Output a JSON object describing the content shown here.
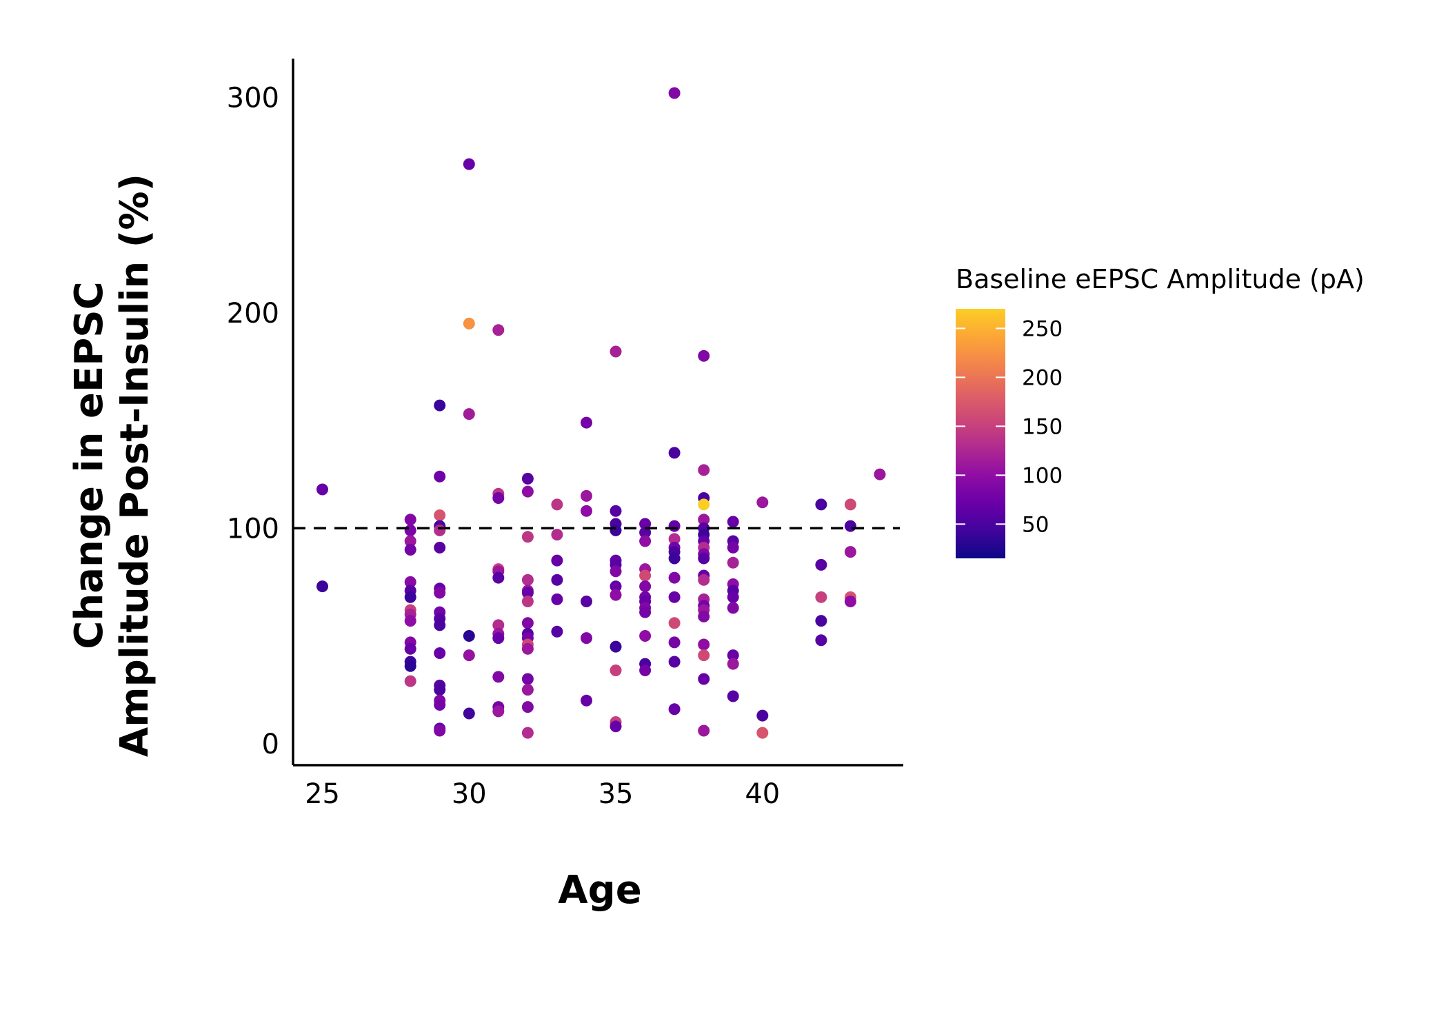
{
  "chart_data": {
    "type": "scatter",
    "title": "",
    "xlabel": "Age",
    "ylabel_lines": [
      "Change in eEPSC",
      "Amplitude Post-Insulin (%)"
    ],
    "xlim": [
      24,
      44.8
    ],
    "ylim": [
      -10,
      318
    ],
    "x_ticks": [
      25,
      30,
      35,
      40
    ],
    "y_ticks": [
      0,
      100,
      200,
      300
    ],
    "reference_line": {
      "y": 100,
      "style": "dashed"
    },
    "grid": false,
    "legend": {
      "title": "Baseline eEPSC Amplitude (pA)",
      "placement": "right",
      "type": "colorbar",
      "range": [
        15,
        270
      ],
      "ticks": [
        50,
        100,
        150,
        200,
        250
      ]
    },
    "colormap": [
      "#0d0887",
      "#41049d",
      "#6a00a8",
      "#8f0da4",
      "#b12a90",
      "#cc4778",
      "#e16462",
      "#f2844b",
      "#fca636",
      "#fcce25"
    ],
    "points": [
      {
        "x": 25,
        "y": 118,
        "c": 70
      },
      {
        "x": 25,
        "y": 73,
        "c": 40
      },
      {
        "x": 28,
        "y": 104,
        "c": 90
      },
      {
        "x": 28,
        "y": 99,
        "c": 85
      },
      {
        "x": 28,
        "y": 94,
        "c": 110
      },
      {
        "x": 28,
        "y": 90,
        "c": 80
      },
      {
        "x": 28,
        "y": 75,
        "c": 95
      },
      {
        "x": 28,
        "y": 71,
        "c": 60
      },
      {
        "x": 28,
        "y": 68,
        "c": 40
      },
      {
        "x": 28,
        "y": 62,
        "c": 150
      },
      {
        "x": 28,
        "y": 60,
        "c": 120
      },
      {
        "x": 28,
        "y": 57,
        "c": 100
      },
      {
        "x": 28,
        "y": 47,
        "c": 90
      },
      {
        "x": 28,
        "y": 44,
        "c": 70
      },
      {
        "x": 28,
        "y": 38,
        "c": 40
      },
      {
        "x": 28,
        "y": 36,
        "c": 30
      },
      {
        "x": 28,
        "y": 29,
        "c": 140
      },
      {
        "x": 29,
        "y": 157,
        "c": 40
      },
      {
        "x": 29,
        "y": 124,
        "c": 75
      },
      {
        "x": 29,
        "y": 106,
        "c": 170
      },
      {
        "x": 29,
        "y": 101,
        "c": 50
      },
      {
        "x": 29,
        "y": 99,
        "c": 130
      },
      {
        "x": 29,
        "y": 91,
        "c": 60
      },
      {
        "x": 29,
        "y": 72,
        "c": 70
      },
      {
        "x": 29,
        "y": 70,
        "c": 90
      },
      {
        "x": 29,
        "y": 61,
        "c": 80
      },
      {
        "x": 29,
        "y": 58,
        "c": 60
      },
      {
        "x": 29,
        "y": 55,
        "c": 50
      },
      {
        "x": 29,
        "y": 42,
        "c": 70
      },
      {
        "x": 29,
        "y": 27,
        "c": 60
      },
      {
        "x": 29,
        "y": 25,
        "c": 50
      },
      {
        "x": 29,
        "y": 20,
        "c": 90
      },
      {
        "x": 29,
        "y": 18,
        "c": 80
      },
      {
        "x": 29,
        "y": 7,
        "c": 70
      },
      {
        "x": 29,
        "y": 6,
        "c": 90
      },
      {
        "x": 30,
        "y": 269,
        "c": 70
      },
      {
        "x": 30,
        "y": 195,
        "c": 225
      },
      {
        "x": 30,
        "y": 153,
        "c": 115
      },
      {
        "x": 30,
        "y": 50,
        "c": 30
      },
      {
        "x": 30,
        "y": 41,
        "c": 105
      },
      {
        "x": 30,
        "y": 14,
        "c": 45
      },
      {
        "x": 31,
        "y": 192,
        "c": 120
      },
      {
        "x": 31,
        "y": 116,
        "c": 140
      },
      {
        "x": 31,
        "y": 114,
        "c": 80
      },
      {
        "x": 31,
        "y": 81,
        "c": 150
      },
      {
        "x": 31,
        "y": 80,
        "c": 110
      },
      {
        "x": 31,
        "y": 77,
        "c": 60
      },
      {
        "x": 31,
        "y": 55,
        "c": 130
      },
      {
        "x": 31,
        "y": 51,
        "c": 110
      },
      {
        "x": 31,
        "y": 49,
        "c": 70
      },
      {
        "x": 31,
        "y": 31,
        "c": 90
      },
      {
        "x": 31,
        "y": 17,
        "c": 80
      },
      {
        "x": 31,
        "y": 15,
        "c": 110
      },
      {
        "x": 32,
        "y": 123,
        "c": 60
      },
      {
        "x": 32,
        "y": 117,
        "c": 100
      },
      {
        "x": 32,
        "y": 96,
        "c": 140
      },
      {
        "x": 32,
        "y": 76,
        "c": 130
      },
      {
        "x": 32,
        "y": 71,
        "c": 110
      },
      {
        "x": 32,
        "y": 70,
        "c": 70
      },
      {
        "x": 32,
        "y": 66,
        "c": 140
      },
      {
        "x": 32,
        "y": 56,
        "c": 90
      },
      {
        "x": 32,
        "y": 51,
        "c": 60
      },
      {
        "x": 32,
        "y": 49,
        "c": 80
      },
      {
        "x": 32,
        "y": 46,
        "c": 160
      },
      {
        "x": 32,
        "y": 44,
        "c": 110
      },
      {
        "x": 32,
        "y": 30,
        "c": 80
      },
      {
        "x": 32,
        "y": 25,
        "c": 110
      },
      {
        "x": 32,
        "y": 17,
        "c": 90
      },
      {
        "x": 32,
        "y": 5,
        "c": 130
      },
      {
        "x": 33,
        "y": 111,
        "c": 140
      },
      {
        "x": 33,
        "y": 97,
        "c": 130
      },
      {
        "x": 33,
        "y": 85,
        "c": 70
      },
      {
        "x": 33,
        "y": 76,
        "c": 60
      },
      {
        "x": 33,
        "y": 67,
        "c": 70
      },
      {
        "x": 33,
        "y": 52,
        "c": 60
      },
      {
        "x": 34,
        "y": 149,
        "c": 80
      },
      {
        "x": 34,
        "y": 115,
        "c": 110
      },
      {
        "x": 34,
        "y": 108,
        "c": 100
      },
      {
        "x": 34,
        "y": 66,
        "c": 60
      },
      {
        "x": 34,
        "y": 49,
        "c": 90
      },
      {
        "x": 34,
        "y": 20,
        "c": 70
      },
      {
        "x": 35,
        "y": 182,
        "c": 120
      },
      {
        "x": 35,
        "y": 108,
        "c": 60
      },
      {
        "x": 35,
        "y": 102,
        "c": 50
      },
      {
        "x": 35,
        "y": 99,
        "c": 40
      },
      {
        "x": 35,
        "y": 85,
        "c": 70
      },
      {
        "x": 35,
        "y": 83,
        "c": 60
      },
      {
        "x": 35,
        "y": 80,
        "c": 90
      },
      {
        "x": 35,
        "y": 73,
        "c": 70
      },
      {
        "x": 35,
        "y": 69,
        "c": 100
      },
      {
        "x": 35,
        "y": 45,
        "c": 40
      },
      {
        "x": 35,
        "y": 34,
        "c": 150
      },
      {
        "x": 35,
        "y": 10,
        "c": 150
      },
      {
        "x": 35,
        "y": 8,
        "c": 70
      },
      {
        "x": 36,
        "y": 102,
        "c": 70
      },
      {
        "x": 36,
        "y": 98,
        "c": 60
      },
      {
        "x": 36,
        "y": 94,
        "c": 100
      },
      {
        "x": 36,
        "y": 81,
        "c": 110
      },
      {
        "x": 36,
        "y": 78,
        "c": 160
      },
      {
        "x": 36,
        "y": 73,
        "c": 90
      },
      {
        "x": 36,
        "y": 68,
        "c": 80
      },
      {
        "x": 36,
        "y": 66,
        "c": 70
      },
      {
        "x": 36,
        "y": 63,
        "c": 90
      },
      {
        "x": 36,
        "y": 61,
        "c": 80
      },
      {
        "x": 36,
        "y": 50,
        "c": 100
      },
      {
        "x": 36,
        "y": 37,
        "c": 50
      },
      {
        "x": 36,
        "y": 34,
        "c": 80
      },
      {
        "x": 37,
        "y": 302,
        "c": 90
      },
      {
        "x": 37,
        "y": 135,
        "c": 50
      },
      {
        "x": 37,
        "y": 101,
        "c": 70
      },
      {
        "x": 37,
        "y": 95,
        "c": 130
      },
      {
        "x": 37,
        "y": 91,
        "c": 80
      },
      {
        "x": 37,
        "y": 89,
        "c": 50
      },
      {
        "x": 37,
        "y": 86,
        "c": 40
      },
      {
        "x": 37,
        "y": 77,
        "c": 90
      },
      {
        "x": 37,
        "y": 68,
        "c": 70
      },
      {
        "x": 37,
        "y": 56,
        "c": 160
      },
      {
        "x": 37,
        "y": 47,
        "c": 80
      },
      {
        "x": 37,
        "y": 38,
        "c": 60
      },
      {
        "x": 37,
        "y": 16,
        "c": 70
      },
      {
        "x": 38,
        "y": 180,
        "c": 90
      },
      {
        "x": 38,
        "y": 127,
        "c": 120
      },
      {
        "x": 38,
        "y": 114,
        "c": 50
      },
      {
        "x": 38,
        "y": 111,
        "c": 270
      },
      {
        "x": 38,
        "y": 104,
        "c": 110
      },
      {
        "x": 38,
        "y": 100,
        "c": 60
      },
      {
        "x": 38,
        "y": 97,
        "c": 40
      },
      {
        "x": 38,
        "y": 94,
        "c": 70
      },
      {
        "x": 38,
        "y": 91,
        "c": 130
      },
      {
        "x": 38,
        "y": 88,
        "c": 90
      },
      {
        "x": 38,
        "y": 86,
        "c": 60
      },
      {
        "x": 38,
        "y": 78,
        "c": 70
      },
      {
        "x": 38,
        "y": 76,
        "c": 130
      },
      {
        "x": 38,
        "y": 67,
        "c": 120
      },
      {
        "x": 38,
        "y": 64,
        "c": 80
      },
      {
        "x": 38,
        "y": 62,
        "c": 110
      },
      {
        "x": 38,
        "y": 59,
        "c": 90
      },
      {
        "x": 38,
        "y": 46,
        "c": 100
      },
      {
        "x": 38,
        "y": 41,
        "c": 160
      },
      {
        "x": 38,
        "y": 30,
        "c": 70
      },
      {
        "x": 38,
        "y": 6,
        "c": 110
      },
      {
        "x": 39,
        "y": 103,
        "c": 70
      },
      {
        "x": 39,
        "y": 94,
        "c": 60
      },
      {
        "x": 39,
        "y": 91,
        "c": 80
      },
      {
        "x": 39,
        "y": 84,
        "c": 120
      },
      {
        "x": 39,
        "y": 74,
        "c": 100
      },
      {
        "x": 39,
        "y": 71,
        "c": 60
      },
      {
        "x": 39,
        "y": 68,
        "c": 70
      },
      {
        "x": 39,
        "y": 63,
        "c": 90
      },
      {
        "x": 39,
        "y": 41,
        "c": 70
      },
      {
        "x": 39,
        "y": 37,
        "c": 110
      },
      {
        "x": 39,
        "y": 22,
        "c": 60
      },
      {
        "x": 40,
        "y": 112,
        "c": 110
      },
      {
        "x": 40,
        "y": 13,
        "c": 50
      },
      {
        "x": 40,
        "y": 5,
        "c": 170
      },
      {
        "x": 42,
        "y": 111,
        "c": 50
      },
      {
        "x": 42,
        "y": 83,
        "c": 60
      },
      {
        "x": 42,
        "y": 68,
        "c": 150
      },
      {
        "x": 42,
        "y": 57,
        "c": 50
      },
      {
        "x": 42,
        "y": 48,
        "c": 60
      },
      {
        "x": 43,
        "y": 111,
        "c": 160
      },
      {
        "x": 43,
        "y": 101,
        "c": 50
      },
      {
        "x": 43,
        "y": 89,
        "c": 110
      },
      {
        "x": 43,
        "y": 68,
        "c": 170
      },
      {
        "x": 43,
        "y": 66,
        "c": 100
      },
      {
        "x": 44,
        "y": 125,
        "c": 110
      }
    ]
  }
}
